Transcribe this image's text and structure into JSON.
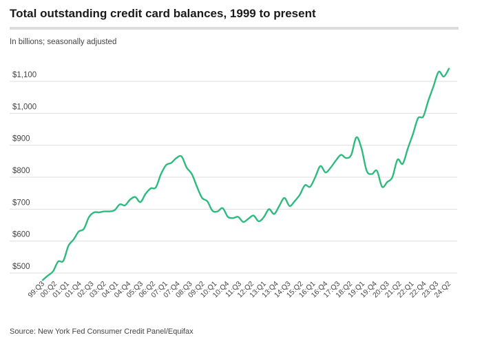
{
  "header": {
    "title": "Total outstanding credit card balances, 1999 to present",
    "subtitle": "In billions; seasonally adjusted"
  },
  "footer": {
    "source": "Source: New York Fed Consumer Credit Panel/Equifax"
  },
  "colors": {
    "line": "#2dba7d",
    "grid": "#dddddd",
    "rule": "#dcdcdc"
  },
  "chart_data": {
    "type": "line",
    "title": "Total outstanding credit card balances, 1999 to present",
    "subtitle": "In billions; seasonally adjusted",
    "xlabel": "",
    "ylabel": "",
    "ylim": [
      475,
      1150
    ],
    "yticks": [
      500,
      600,
      700,
      800,
      900,
      1000,
      1100
    ],
    "ytick_labels": [
      "$500",
      "$600",
      "$700",
      "$800",
      "$900",
      "$1,000",
      "$1,100"
    ],
    "xticks": [
      "99:Q3",
      "00:Q2",
      "01:Q1",
      "01:Q4",
      "02:Q3",
      "03:Q2",
      "04:Q1",
      "04:Q4",
      "05:Q3",
      "06:Q2",
      "07:Q1",
      "07:Q4",
      "08:Q3",
      "09:Q2",
      "10:Q1",
      "10:Q4",
      "11:Q3",
      "12:Q2",
      "13:Q1",
      "13:Q4",
      "14:Q3",
      "15:Q2",
      "16:Q1",
      "16:Q4",
      "17:Q3",
      "18:Q2",
      "19:Q1",
      "19:Q4",
      "20:Q3",
      "21:Q2",
      "22:Q1",
      "22:Q4",
      "23:Q3",
      "24:Q2"
    ],
    "grid": true,
    "legend": "none",
    "series": [
      {
        "values": [
          478,
          492,
          505,
          536,
          538,
          585,
          605,
          630,
          638,
          675,
          690,
          690,
          693,
          693,
          697,
          715,
          712,
          730,
          738,
          722,
          748,
          765,
          768,
          810,
          838,
          845,
          860,
          865,
          830,
          810,
          770,
          735,
          725,
          695,
          693,
          703,
          676,
          672,
          676,
          660,
          670,
          680,
          662,
          675,
          700,
          685,
          710,
          735,
          710,
          725,
          745,
          775,
          770,
          800,
          835,
          815,
          830,
          852,
          870,
          860,
          870,
          925,
          890,
          820,
          810,
          820,
          770,
          785,
          800,
          855,
          842,
          890,
          935,
          985,
          990,
          1040,
          1085,
          1130,
          1115,
          1140
        ]
      }
    ]
  }
}
